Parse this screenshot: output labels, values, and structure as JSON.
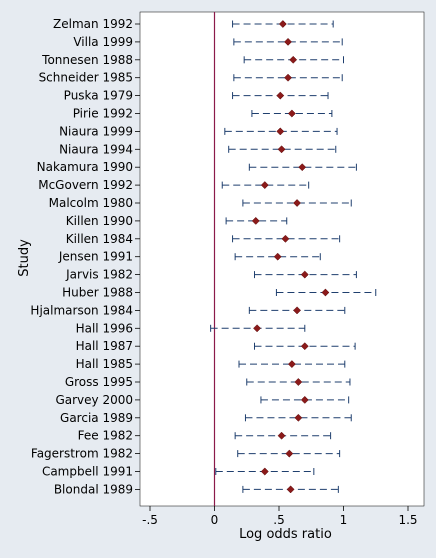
{
  "chart_data": {
    "type": "scatter",
    "subtype": "forest-plot",
    "title": "",
    "xlabel": "Log odds ratio",
    "ylabel": "Study",
    "xlim": [
      -0.5,
      1.5
    ],
    "xticks": [
      -0.5,
      0,
      0.5,
      1,
      1.5
    ],
    "xtick_labels": [
      "-.5",
      "0",
      ".5",
      "1",
      "1.5"
    ],
    "reference_line": 0,
    "grid": false,
    "colors": {
      "marker": "#8b1a1a",
      "whisker": "#1f3f6e",
      "reference_line": "#8b1a4a",
      "plot_background": "#ffffff",
      "page_background": "#e6ebf1"
    },
    "studies": [
      {
        "name": "Zelman 1992",
        "estimate": 0.53,
        "ci": [
          0.14,
          0.92
        ]
      },
      {
        "name": "Villa 1999",
        "estimate": 0.57,
        "ci": [
          0.15,
          0.99
        ]
      },
      {
        "name": "Tonnesen 1988",
        "estimate": 0.61,
        "ci": [
          0.23,
          1.0
        ]
      },
      {
        "name": "Schneider 1985",
        "estimate": 0.57,
        "ci": [
          0.15,
          0.99
        ]
      },
      {
        "name": "Puska 1979",
        "estimate": 0.51,
        "ci": [
          0.14,
          0.88
        ]
      },
      {
        "name": "Pirie 1992",
        "estimate": 0.6,
        "ci": [
          0.29,
          0.91
        ]
      },
      {
        "name": "Niaura 1999",
        "estimate": 0.51,
        "ci": [
          0.08,
          0.95
        ]
      },
      {
        "name": "Niaura 1994",
        "estimate": 0.52,
        "ci": [
          0.11,
          0.94
        ]
      },
      {
        "name": "Nakamura 1990",
        "estimate": 0.68,
        "ci": [
          0.27,
          1.1
        ]
      },
      {
        "name": "McGovern 1992",
        "estimate": 0.39,
        "ci": [
          0.06,
          0.73
        ]
      },
      {
        "name": "Malcolm 1980",
        "estimate": 0.64,
        "ci": [
          0.22,
          1.06
        ]
      },
      {
        "name": "Killen 1990",
        "estimate": 0.32,
        "ci": [
          0.09,
          0.56
        ]
      },
      {
        "name": "Killen 1984",
        "estimate": 0.55,
        "ci": [
          0.14,
          0.97
        ]
      },
      {
        "name": "Jensen 1991",
        "estimate": 0.49,
        "ci": [
          0.16,
          0.82
        ]
      },
      {
        "name": "Jarvis 1982",
        "estimate": 0.7,
        "ci": [
          0.31,
          1.1
        ]
      },
      {
        "name": "Huber 1988",
        "estimate": 0.86,
        "ci": [
          0.48,
          1.25
        ]
      },
      {
        "name": "Hjalmarson 1984",
        "estimate": 0.64,
        "ci": [
          0.27,
          1.01
        ]
      },
      {
        "name": "Hall 1996",
        "estimate": 0.33,
        "ci": [
          -0.03,
          0.7
        ]
      },
      {
        "name": "Hall 1987",
        "estimate": 0.7,
        "ci": [
          0.31,
          1.09
        ]
      },
      {
        "name": "Hall 1985",
        "estimate": 0.6,
        "ci": [
          0.19,
          1.01
        ]
      },
      {
        "name": "Gross 1995",
        "estimate": 0.65,
        "ci": [
          0.25,
          1.05
        ]
      },
      {
        "name": "Garvey 2000",
        "estimate": 0.7,
        "ci": [
          0.36,
          1.04
        ]
      },
      {
        "name": "Garcia 1989",
        "estimate": 0.65,
        "ci": [
          0.24,
          1.06
        ]
      },
      {
        "name": "Fee 1982",
        "estimate": 0.52,
        "ci": [
          0.16,
          0.9
        ]
      },
      {
        "name": "Fagerstrom 1982",
        "estimate": 0.58,
        "ci": [
          0.18,
          0.97
        ]
      },
      {
        "name": "Campbell 1991",
        "estimate": 0.39,
        "ci": [
          0.01,
          0.77
        ]
      },
      {
        "name": "Blondal 1989",
        "estimate": 0.59,
        "ci": [
          0.22,
          0.96
        ]
      }
    ]
  }
}
